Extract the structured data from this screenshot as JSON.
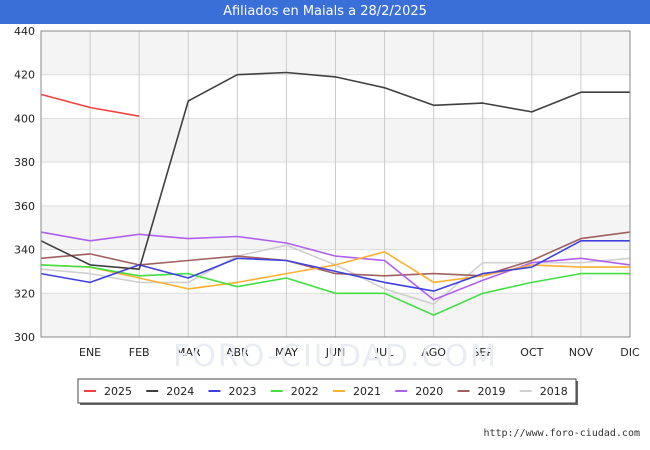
{
  "title": "Afiliados en Maials a 28/2/2025",
  "footer_url": "http://www.foro-ciudad.com",
  "watermark": "FORO-CIUDAD.COM",
  "chart_data": {
    "type": "line",
    "title": "Afiliados en Maials a 28/2/2025",
    "xlabel": "",
    "ylabel": "",
    "categories": [
      "",
      "ENE",
      "FEB",
      "MAR",
      "ABR",
      "MAY",
      "JUN",
      "JUL",
      "AGO",
      "SEP",
      "OCT",
      "NOV",
      "DIC"
    ],
    "ylim": [
      300,
      440
    ],
    "yticks": [
      300,
      320,
      340,
      360,
      380,
      400,
      420,
      440
    ],
    "grid": true,
    "legend_position": "bottom",
    "series": [
      {
        "name": "2025",
        "color": "#f04040",
        "values": [
          411,
          405,
          401,
          null,
          null,
          null,
          null,
          null,
          null,
          null,
          null,
          null,
          null
        ]
      },
      {
        "name": "2024",
        "color": "#404040",
        "values": [
          344,
          333,
          331,
          408,
          420,
          421,
          419,
          414,
          406,
          407,
          403,
          412,
          412
        ]
      },
      {
        "name": "2023",
        "color": "#4040e0",
        "values": [
          329,
          325,
          333,
          327,
          336,
          335,
          330,
          325,
          321,
          329,
          332,
          344,
          344
        ]
      },
      {
        "name": "2022",
        "color": "#40e040",
        "values": [
          333,
          332,
          328,
          329,
          323,
          327,
          320,
          320,
          310,
          320,
          325,
          329,
          329
        ]
      },
      {
        "name": "2021",
        "color": "#ffb030",
        "values": [
          333,
          332,
          327,
          322,
          325,
          329,
          333,
          339,
          325,
          328,
          333,
          332,
          332
        ]
      },
      {
        "name": "2020",
        "color": "#b060f0",
        "values": [
          348,
          344,
          347,
          345,
          346,
          343,
          337,
          335,
          317,
          326,
          334,
          336,
          333
        ]
      },
      {
        "name": "2019",
        "color": "#a06060",
        "values": [
          336,
          338,
          333,
          335,
          337,
          335,
          329,
          328,
          329,
          328,
          335,
          345,
          348
        ]
      },
      {
        "name": "2018",
        "color": "#d0d0d0",
        "values": [
          331,
          329,
          325,
          325,
          337,
          342,
          333,
          322,
          315,
          334,
          334,
          334,
          336
        ]
      }
    ]
  }
}
